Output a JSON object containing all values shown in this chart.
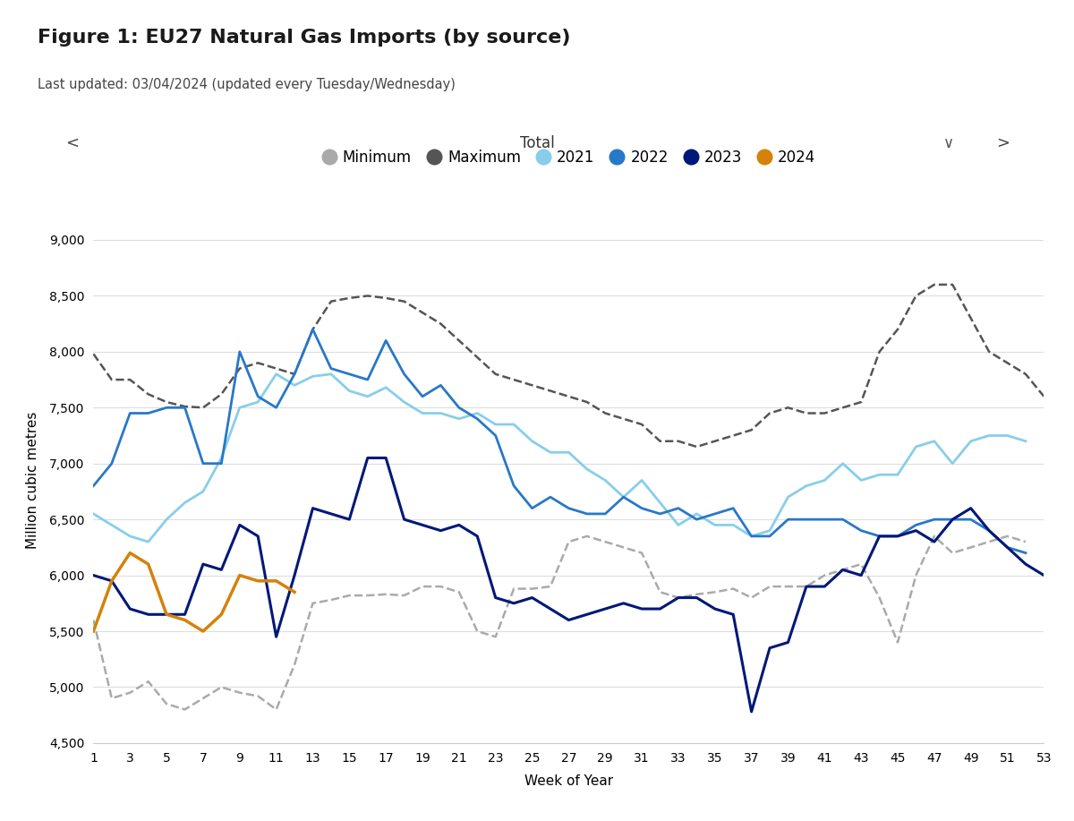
{
  "title": "Figure 1: EU27 Natural Gas Imports (by source)",
  "subtitle": "Last updated: 03/04/2024 (updated every Tuesday/Wednesday)",
  "dropdown_label": "Total",
  "ylabel": "Million cubic metres",
  "xlabel": "Week of Year",
  "ylim": [
    4500,
    9200
  ],
  "yticks": [
    4500,
    5000,
    5500,
    6000,
    6500,
    7000,
    7500,
    8000,
    8500,
    9000
  ],
  "xticks": [
    1,
    3,
    5,
    7,
    9,
    11,
    13,
    15,
    17,
    19,
    21,
    23,
    25,
    27,
    29,
    31,
    33,
    35,
    37,
    39,
    41,
    43,
    45,
    47,
    49,
    51,
    53
  ],
  "background_color": "#ffffff",
  "plot_bg_color": "#ffffff",
  "weeks": [
    1,
    2,
    3,
    4,
    5,
    6,
    7,
    8,
    9,
    10,
    11,
    12,
    13,
    14,
    15,
    16,
    17,
    18,
    19,
    20,
    21,
    22,
    23,
    24,
    25,
    26,
    27,
    28,
    29,
    30,
    31,
    32,
    33,
    34,
    35,
    36,
    37,
    38,
    39,
    40,
    41,
    42,
    43,
    44,
    45,
    46,
    47,
    48,
    49,
    50,
    51,
    52,
    53
  ],
  "maximum": [
    7980,
    7750,
    7750,
    7620,
    7550,
    7510,
    7500,
    7620,
    7850,
    7900,
    7850,
    7800,
    8200,
    8450,
    8480,
    8500,
    8480,
    8450,
    8350,
    8250,
    8100,
    7950,
    7800,
    7750,
    7700,
    7650,
    7600,
    7550,
    7450,
    7400,
    7350,
    7200,
    7200,
    7150,
    7200,
    7250,
    7300,
    7450,
    7500,
    7450,
    7450,
    7500,
    7550,
    8000,
    8200,
    8500,
    8600,
    8600,
    8300,
    8000,
    7900,
    7800,
    7600
  ],
  "minimum": [
    5600,
    4900,
    4950,
    5050,
    4850,
    4800,
    4900,
    5000,
    4950,
    4920,
    4800,
    5200,
    5750,
    5780,
    5820,
    5820,
    5830,
    5820,
    5900,
    5900,
    5850,
    5500,
    5450,
    5880,
    5880,
    5900,
    6300,
    6350,
    6300,
    6250,
    6200,
    5850,
    5800,
    5830,
    5850,
    5880,
    5800,
    5900,
    5900,
    5900,
    6000,
    6050,
    6100,
    5800,
    5400,
    6000,
    6350,
    6200,
    6250,
    6300,
    6350,
    6300,
    null
  ],
  "y2021": [
    6550,
    6450,
    6350,
    6300,
    6500,
    6650,
    6750,
    7050,
    7500,
    7550,
    7800,
    7700,
    7780,
    7800,
    7650,
    7600,
    7680,
    7550,
    7450,
    7450,
    7400,
    7450,
    7350,
    7350,
    7200,
    7100,
    7100,
    6950,
    6850,
    6700,
    6850,
    6650,
    6450,
    6550,
    6450,
    6450,
    6350,
    6400,
    6700,
    6800,
    6850,
    7000,
    6850,
    6900,
    6900,
    7150,
    7200,
    7000,
    7200,
    7250,
    7250,
    7200,
    null
  ],
  "y2022": [
    6800,
    7000,
    7450,
    7450,
    7500,
    7500,
    7000,
    7000,
    8000,
    7600,
    7500,
    7800,
    8200,
    7850,
    7800,
    7750,
    8100,
    7800,
    7600,
    7700,
    7500,
    7400,
    7250,
    6800,
    6600,
    6700,
    6600,
    6550,
    6550,
    6700,
    6600,
    6550,
    6600,
    6500,
    6550,
    6600,
    6350,
    6350,
    6500,
    6500,
    6500,
    6500,
    6400,
    6350,
    6350,
    6450,
    6500,
    6500,
    6500,
    6400,
    6250,
    6200,
    null
  ],
  "y2023": [
    6000,
    5950,
    5700,
    5650,
    5650,
    5650,
    6100,
    6050,
    6450,
    6350,
    5450,
    6000,
    6600,
    6550,
    6500,
    7050,
    7050,
    6500,
    6450,
    6400,
    6450,
    6350,
    5800,
    5750,
    5800,
    5700,
    5600,
    5650,
    5700,
    5750,
    5700,
    5700,
    5800,
    5800,
    5700,
    5650,
    4780,
    5350,
    5400,
    5900,
    5900,
    6050,
    6000,
    6350,
    6350,
    6400,
    6300,
    6500,
    6600,
    6400,
    6250,
    6100,
    6000
  ],
  "y2024": [
    5500,
    5950,
    6200,
    6100,
    5650,
    5600,
    5500,
    5650,
    6000,
    5950,
    5950,
    5850,
    null,
    null,
    null,
    null,
    null,
    null,
    null,
    null,
    null,
    null,
    null,
    null,
    null,
    null,
    null,
    null,
    null,
    null,
    null,
    null,
    null,
    null,
    null,
    null,
    null,
    null,
    null,
    null,
    null,
    null,
    null,
    null,
    null,
    null,
    null,
    null,
    null,
    null,
    null,
    null,
    null
  ],
  "colors": {
    "maximum": "#555555",
    "minimum": "#aaaaaa",
    "y2021": "#87ceeb",
    "y2022": "#2878c8",
    "y2023": "#001878",
    "y2024": "#d4820a"
  },
  "legend_labels": [
    "Minimum",
    "Maximum",
    "2021",
    "2022",
    "2023",
    "2024"
  ]
}
